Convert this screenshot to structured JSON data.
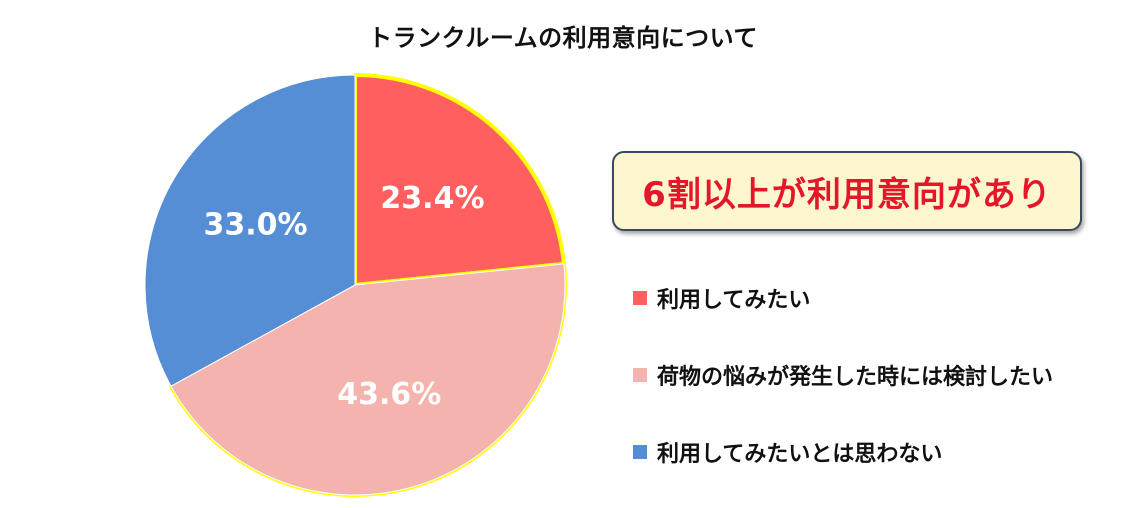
{
  "chart_data": {
    "type": "pie",
    "title": "トランクルームの利用意向について",
    "slices": [
      {
        "label": "利用してみたい",
        "value": 23.4,
        "display": "23.4%",
        "color": "#ff5f5f"
      },
      {
        "label": "荷物の悩みが発生した時には検討したい",
        "value": 43.6,
        "display": "43.6%",
        "color": "#f4b3ad"
      },
      {
        "label": "利用してみたいとは思わない",
        "value": 33.0,
        "display": "33.0%",
        "color": "#568ed6"
      }
    ],
    "start_angle_deg": 0,
    "direction": "clockwise",
    "outline_color": "#ffff00",
    "legend_position": "right"
  },
  "callout": {
    "text": "6割以上が利用意向があり",
    "text_color": "#e4162a",
    "background": "#fdf6cf"
  }
}
